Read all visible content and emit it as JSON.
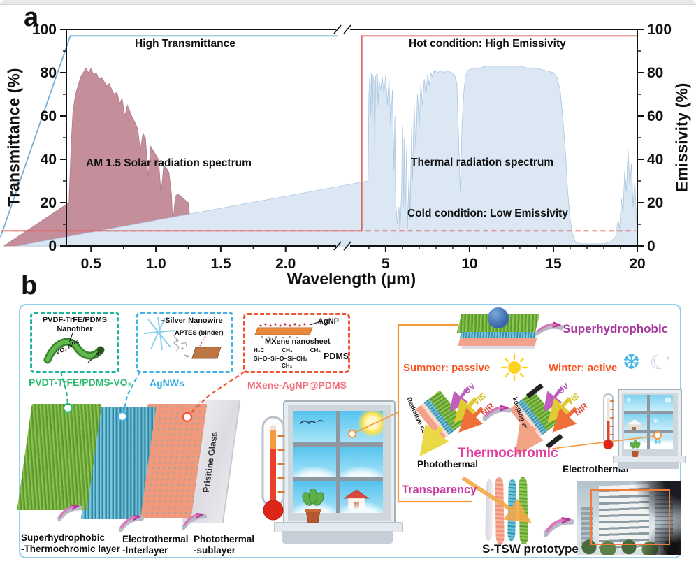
{
  "panel_a": {
    "label": "a",
    "axis": {
      "y_left_title": "Transmittance (%)",
      "y_right_title": "Emissivity (%)",
      "x_title": "Wavelength (μm)"
    },
    "annotations": {
      "high_transmittance": "High Transmittance",
      "hot_condition": "Hot condition: High Emissivity",
      "solar": "AM 1.5 Solar radiation spectrum",
      "thermal": "Thermal radiation spectrum",
      "cold_condition": "Cold condition: Low Emissivity"
    },
    "chart_data": {
      "type": "area",
      "title": "",
      "xlabel": "Wavelength (μm)",
      "ylabel_left": "Transmittance (%)",
      "ylabel_right": "Emissivity (%)",
      "axis_break": true,
      "x_axis": {
        "left_section": {
          "domain": [
            0.31,
            2.4
          ],
          "ticks": [
            0.5,
            1.0,
            1.5,
            2.0
          ],
          "minor_step": 0.25
        },
        "right_section": {
          "domain": [
            2.88,
            20.0
          ],
          "ticks": [
            5,
            10,
            15,
            20
          ],
          "minor_step": 1
        }
      },
      "y_axis": {
        "range": [
          0,
          100
        ],
        "ticks": [
          0,
          20,
          40,
          60,
          80,
          100
        ],
        "minor_step": 10
      },
      "series": [
        {
          "name": "AM 1.5 Solar radiation spectrum",
          "section": "left",
          "kind": "area",
          "fill": "#c48e9a",
          "stroke": "#b07d89",
          "points": [
            [
              0.313,
              0
            ],
            [
              0.33,
              20
            ],
            [
              0.345,
              45
            ],
            [
              0.36,
              62
            ],
            [
              0.38,
              70
            ],
            [
              0.4,
              74
            ],
            [
              0.42,
              78
            ],
            [
              0.44,
              80
            ],
            [
              0.46,
              82
            ],
            [
              0.48,
              80
            ],
            [
              0.5,
              82
            ],
            [
              0.52,
              79
            ],
            [
              0.54,
              80
            ],
            [
              0.56,
              77
            ],
            [
              0.58,
              78
            ],
            [
              0.6,
              76
            ],
            [
              0.62,
              74
            ],
            [
              0.64,
              75
            ],
            [
              0.66,
              72
            ],
            [
              0.68,
              70
            ],
            [
              0.7,
              71
            ],
            [
              0.72,
              66
            ],
            [
              0.74,
              68
            ],
            [
              0.76,
              60
            ],
            [
              0.78,
              65
            ],
            [
              0.8,
              62
            ],
            [
              0.82,
              59
            ],
            [
              0.84,
              57
            ],
            [
              0.86,
              54
            ],
            [
              0.88,
              44
            ],
            [
              0.9,
              52
            ],
            [
              0.92,
              50
            ],
            [
              0.94,
              32
            ],
            [
              0.96,
              46
            ],
            [
              0.98,
              44
            ],
            [
              1.0,
              42
            ],
            [
              1.02,
              40
            ],
            [
              1.04,
              24
            ],
            [
              1.06,
              37
            ],
            [
              1.08,
              36
            ],
            [
              1.1,
              34
            ],
            [
              1.12,
              24
            ],
            [
              1.13,
              10
            ],
            [
              1.15,
              23
            ],
            [
              1.17,
              24
            ],
            [
              1.19,
              23
            ],
            [
              1.21,
              22
            ],
            [
              1.23,
              21
            ],
            [
              1.25,
              20
            ],
            [
              1.27,
              8
            ],
            [
              1.29,
              2
            ],
            [
              1.32,
              0
            ],
            [
              1.34,
              4
            ],
            [
              1.36,
              10
            ],
            [
              1.38,
              13
            ],
            [
              1.4,
              14
            ],
            [
              1.43,
              14
            ],
            [
              1.46,
              13
            ],
            [
              1.49,
              13
            ],
            [
              1.52,
              12
            ],
            [
              1.55,
              11
            ],
            [
              1.58,
              10
            ],
            [
              1.6,
              9
            ],
            [
              1.62,
              5
            ],
            [
              1.64,
              2
            ],
            [
              1.67,
              0
            ],
            [
              1.72,
              0
            ],
            [
              1.74,
              2
            ],
            [
              1.76,
              4
            ],
            [
              1.78,
              3
            ],
            [
              1.8,
              5
            ],
            [
              1.83,
              6
            ],
            [
              1.86,
              5
            ],
            [
              1.89,
              6
            ],
            [
              1.92,
              6
            ],
            [
              1.95,
              6
            ],
            [
              1.98,
              6
            ],
            [
              2.01,
              5
            ],
            [
              2.05,
              5
            ],
            [
              2.1,
              5
            ],
            [
              2.15,
              4
            ],
            [
              2.2,
              4
            ],
            [
              2.25,
              3
            ],
            [
              2.3,
              2
            ],
            [
              2.35,
              1
            ],
            [
              2.4,
              0
            ]
          ]
        },
        {
          "name": "Thermal radiation spectrum",
          "section": "right",
          "kind": "area",
          "fill": "#dbe7f3",
          "stroke": "#aac6e0",
          "points": [
            [
              3.85,
              0
            ],
            [
              3.95,
              30
            ],
            [
              4.0,
              70
            ],
            [
              4.05,
              78
            ],
            [
              4.1,
              60
            ],
            [
              4.15,
              80
            ],
            [
              4.2,
              55
            ],
            [
              4.25,
              79
            ],
            [
              4.3,
              75
            ],
            [
              4.35,
              45
            ],
            [
              4.4,
              78
            ],
            [
              4.5,
              80
            ],
            [
              4.55,
              65
            ],
            [
              4.6,
              77
            ],
            [
              4.7,
              72
            ],
            [
              4.8,
              78
            ],
            [
              4.9,
              70
            ],
            [
              5.0,
              79
            ],
            [
              5.1,
              65
            ],
            [
              5.2,
              77
            ],
            [
              5.3,
              55
            ],
            [
              5.4,
              72
            ],
            [
              5.5,
              35
            ],
            [
              5.55,
              60
            ],
            [
              5.6,
              20
            ],
            [
              5.7,
              10
            ],
            [
              5.8,
              18
            ],
            [
              5.85,
              6
            ],
            [
              5.95,
              25
            ],
            [
              6.0,
              55
            ],
            [
              6.05,
              18
            ],
            [
              6.1,
              50
            ],
            [
              6.15,
              12
            ],
            [
              6.25,
              45
            ],
            [
              6.3,
              8
            ],
            [
              6.4,
              35
            ],
            [
              6.45,
              12
            ],
            [
              6.55,
              55
            ],
            [
              6.6,
              30
            ],
            [
              6.7,
              65
            ],
            [
              6.8,
              45
            ],
            [
              6.9,
              70
            ],
            [
              7.0,
              55
            ],
            [
              7.1,
              75
            ],
            [
              7.2,
              65
            ],
            [
              7.3,
              77
            ],
            [
              7.4,
              70
            ],
            [
              7.5,
              79
            ],
            [
              7.6,
              74
            ],
            [
              7.7,
              80
            ],
            [
              7.8,
              78
            ],
            [
              7.9,
              81
            ],
            [
              8.1,
              80
            ],
            [
              8.3,
              81
            ],
            [
              8.5,
              80
            ],
            [
              8.7,
              81
            ],
            [
              8.9,
              80
            ],
            [
              9.1,
              79
            ],
            [
              9.25,
              75
            ],
            [
              9.35,
              50
            ],
            [
              9.45,
              25
            ],
            [
              9.55,
              55
            ],
            [
              9.65,
              70
            ],
            [
              9.75,
              78
            ],
            [
              9.9,
              81
            ],
            [
              10.2,
              82
            ],
            [
              10.6,
              82
            ],
            [
              11.0,
              83
            ],
            [
              11.5,
              83
            ],
            [
              12.0,
              83
            ],
            [
              12.5,
              83
            ],
            [
              13.0,
              83
            ],
            [
              13.5,
              82
            ],
            [
              14.0,
              82
            ],
            [
              14.5,
              81
            ],
            [
              15.0,
              80
            ],
            [
              15.2,
              78
            ],
            [
              15.4,
              72
            ],
            [
              15.55,
              60
            ],
            [
              15.7,
              45
            ],
            [
              15.85,
              25
            ],
            [
              16.0,
              12
            ],
            [
              16.15,
              5
            ],
            [
              16.3,
              2
            ],
            [
              16.6,
              1
            ],
            [
              17.0,
              1
            ],
            [
              17.5,
              1
            ],
            [
              18.0,
              1
            ],
            [
              18.4,
              2
            ],
            [
              18.7,
              4
            ],
            [
              18.85,
              12
            ],
            [
              18.95,
              8
            ],
            [
              19.05,
              22
            ],
            [
              19.15,
              15
            ],
            [
              19.25,
              35
            ],
            [
              19.35,
              25
            ],
            [
              19.45,
              45
            ],
            [
              19.55,
              28
            ],
            [
              19.65,
              38
            ],
            [
              19.75,
              18
            ],
            [
              19.85,
              30
            ],
            [
              19.95,
              12
            ],
            [
              20.0,
              5
            ]
          ]
        },
        {
          "name": "High Transmittance line",
          "section": "left",
          "kind": "line",
          "stroke": "#74aed4",
          "width": 1.8,
          "points": [
            [
              0.34,
              4
            ],
            [
              0.34,
              97
            ],
            [
              2.4,
              97
            ]
          ]
        },
        {
          "name": "Hot condition: High Emissivity line",
          "section": "right",
          "kind": "line",
          "stroke": "#dd6a66",
          "width": 1.8,
          "points": [
            [
              2.88,
              7
            ],
            [
              3.58,
              7
            ],
            [
              3.58,
              97
            ],
            [
              20.0,
              97
            ]
          ]
        },
        {
          "name": "Cold condition: Low Emissivity line",
          "section": "right",
          "kind": "line",
          "stroke": "#dd6a66",
          "width": 1.8,
          "dash": "7 5",
          "points": [
            [
              3.65,
              7
            ],
            [
              19.9,
              7
            ]
          ]
        }
      ]
    }
  },
  "panel_b": {
    "label": "b",
    "boxes": {
      "nanofiber": {
        "title_l1": "PVDF-TrFE/PDMS",
        "title_l2": "Nanofiber",
        "note": "VO₂ NPs",
        "caption": "PVDT-TrFE/PDMS-VO₂"
      },
      "silver": {
        "title": "–Silver Nanowire",
        "note": "APTES (binder)",
        "caption": "AgNWs"
      },
      "mxene": {
        "agnp": "AgNP",
        "nanosheet": "MXene nanosheet",
        "pdms": "PDMS",
        "chem": {
          "groups_top": [
            "H₃C",
            "CH₃",
            "CH₃"
          ],
          "backbone": "Si–O–Si–O–Si–CH₃",
          "group_bottom": "CH₃"
        },
        "caption": "MXene-AgNP@PDMS"
      }
    },
    "stack": {
      "layer1_l1": "Superhydrophobic",
      "layer1_l2": "-Thermochromic layer",
      "layer2_l1": "Electrothermal",
      "layer2_l2": "-Interlayer",
      "layer3_l1": "Photothermal",
      "layer3_l2": "-sublayer",
      "glass": "Prisitine Glass"
    },
    "right": {
      "superhydrophobic": "Superhydrophobic",
      "summer": "Summer: passive",
      "winter": "Winter: active",
      "radiative_cooling": "Radiative cooling",
      "keeping_warmth": "keeping warmth",
      "uv": "UV",
      "vis": "VIS",
      "nir": "NIR",
      "thermochromic": "Thermochromic",
      "photothermal": "Photothermal",
      "electrothermal": "Electrothermal",
      "transparency": "Transparency",
      "prototype": "S-TSW prototype"
    },
    "icons": {
      "snowflake": "❆",
      "moon": "☾",
      "snow_small": "❄",
      "sparkle": "✦"
    },
    "colors": {
      "teal_box": "#1db5a2",
      "green_caption": "#2eb872",
      "blue_caption": "#2aabe4",
      "red_box": "#f05535",
      "pink_caption": "#f2707e",
      "orange_accent": "#f59a3c",
      "magenta": "#a5379c",
      "pink_label": "#e23e9e",
      "season": "#f7531f",
      "solar_fill": "#c48e9a",
      "thermal_fill": "#dbe7f3",
      "blue_line": "#74aed4",
      "red_line": "#dd6a66"
    }
  }
}
